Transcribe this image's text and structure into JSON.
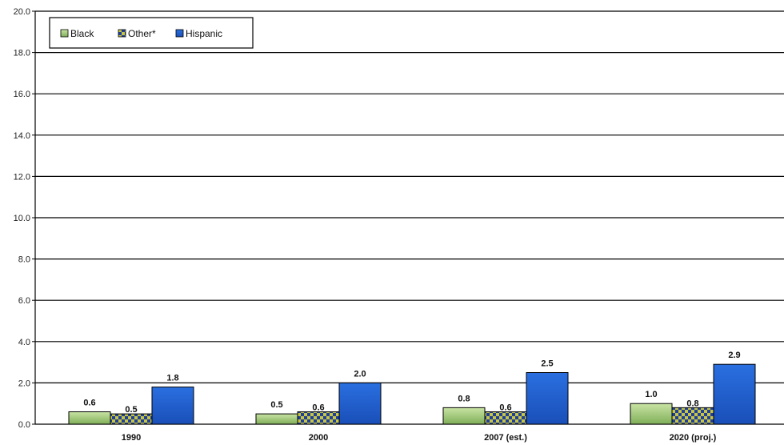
{
  "chart_data": {
    "type": "bar",
    "categories": [
      "1990",
      "2000",
      "2007 (est.)",
      "2020 (proj.)"
    ],
    "series": [
      {
        "name": "Black",
        "values": [
          0.6,
          0.5,
          0.8,
          1.0
        ],
        "color": "#9bc46f",
        "pattern": "solid"
      },
      {
        "name": "Other*",
        "values": [
          0.5,
          0.6,
          0.6,
          0.8
        ],
        "color": "#1f4bb0",
        "pattern": "yellow-check"
      },
      {
        "name": "Hispanic",
        "values": [
          1.8,
          2.0,
          2.5,
          2.9
        ],
        "color": "#1f5fcf",
        "pattern": "solid"
      }
    ],
    "data_labels": [
      [
        "0.6",
        "0.5",
        "0.8",
        "1.0"
      ],
      [
        "0.5",
        "0.6",
        "0.6",
        "0.8"
      ],
      [
        "1.8",
        "2.0",
        "2.5",
        "2.9"
      ]
    ],
    "ylim": [
      0,
      20
    ],
    "yticks": [
      "0.0",
      "2.0",
      "4.0",
      "6.0",
      "8.0",
      "10.0",
      "12.0",
      "14.0",
      "16.0",
      "18.0",
      "20.0"
    ],
    "grid": true,
    "legend_position": "top-left"
  }
}
